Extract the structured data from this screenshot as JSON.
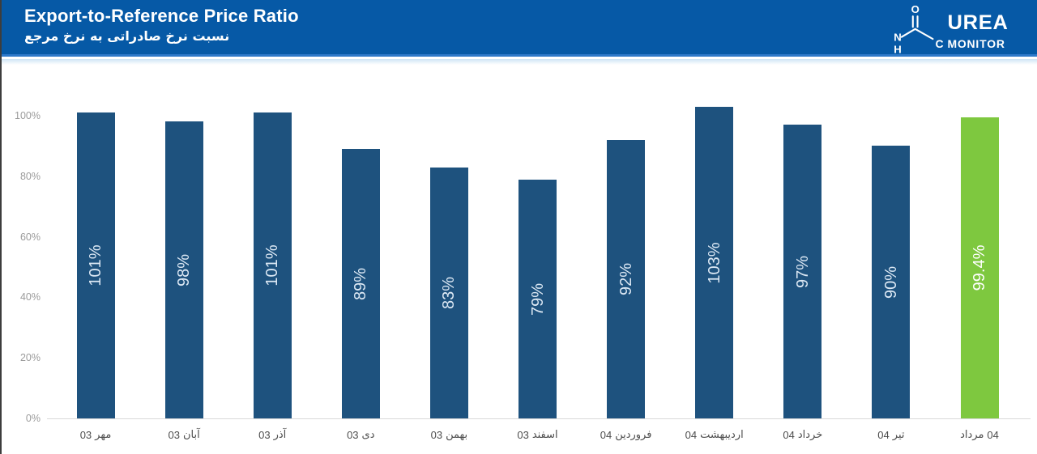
{
  "header": {
    "title": "Export-to-Reference Price Ratio",
    "subtitle_fa": "نسبت نرخ صادراتی به نرخ مرجع",
    "colors": {
      "background": "#0659a6",
      "accent_line": "#2e79c9"
    },
    "logo": {
      "brand_top": "UREA",
      "brand_bottom": "MONITOR",
      "atom_o": "O",
      "atom_n": "N",
      "atom_h": "H",
      "atom_c": "C"
    }
  },
  "chart_data": {
    "type": "bar",
    "title": "Export-to-Reference Price Ratio",
    "xlabel": "",
    "ylabel": "",
    "ylim": [
      0,
      105
    ],
    "grid": false,
    "legend": false,
    "y_ticks": [
      {
        "label": "100%",
        "value": 100
      },
      {
        "label": "80%",
        "value": 80
      },
      {
        "label": "60%",
        "value": 60
      },
      {
        "label": "40%",
        "value": 40
      },
      {
        "label": "20%",
        "value": 20
      },
      {
        "label": "0%",
        "value": 0
      }
    ],
    "categories": [
      {
        "month": "مهر",
        "year": "03",
        "year_side": "left"
      },
      {
        "month": "آبان",
        "year": "03",
        "year_side": "left"
      },
      {
        "month": "آذر",
        "year": "03",
        "year_side": "left"
      },
      {
        "month": "دی",
        "year": "03",
        "year_side": "left"
      },
      {
        "month": "بهمن",
        "year": "03",
        "year_side": "left"
      },
      {
        "month": "اسفند",
        "year": "03",
        "year_side": "left"
      },
      {
        "month": "فروردین",
        "year": "04",
        "year_side": "left"
      },
      {
        "month": "اردیبهشت",
        "year": "04",
        "year_side": "left"
      },
      {
        "month": "خرداد",
        "year": "04",
        "year_side": "left"
      },
      {
        "month": "تیر",
        "year": "04",
        "year_side": "left"
      },
      {
        "month": "مرداد",
        "year": "04",
        "year_side": "right"
      }
    ],
    "values": [
      101,
      98,
      101,
      89,
      83,
      79,
      92,
      103,
      97,
      90,
      99.4
    ],
    "value_labels": [
      "101%",
      "98%",
      "101%",
      "89%",
      "83%",
      "79%",
      "92%",
      "103%",
      "97%",
      "90%",
      "99.4%"
    ],
    "bar_color": "#1e527e",
    "highlight_color": "#7ec83f",
    "highlight_index": 10
  }
}
